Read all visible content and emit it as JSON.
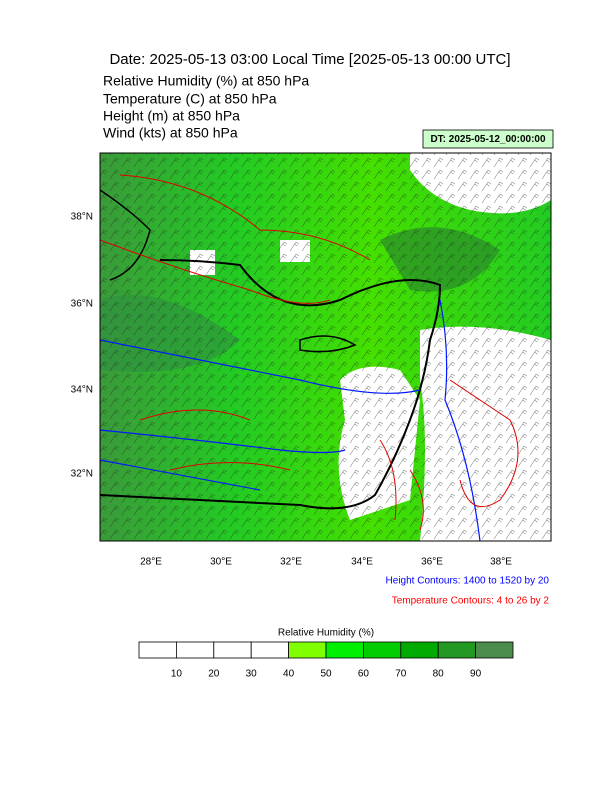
{
  "header": {
    "title": "Date: 2025-05-13  03:00 Local Time [2025-05-13  00:00 UTC]",
    "lines": [
      "Relative Humidity   (%)     at   850 hPa",
      "Temperature   (C)     at   850 hPa",
      "Height   (m)     at   850 hPa",
      "Wind   (kts)     at   850 hPa"
    ],
    "dt": "DT: 2025-05-12_00:00:00"
  },
  "map": {
    "lat_labels": [
      "38°N",
      "36°N",
      "34°N",
      "32°N"
    ],
    "lon_labels": [
      "28°E",
      "30°E",
      "32°E",
      "34°E",
      "36°E",
      "38°E"
    ]
  },
  "notes": [
    "Height Contours: 1400 to 1520 by 20",
    "Temperature Contours: 4 to 26 by 2"
  ],
  "colorbar": {
    "title": "Relative Humidity  (%)",
    "labels": [
      "10",
      "20",
      "30",
      "40",
      "50",
      "60",
      "70",
      "80",
      "90"
    ]
  }
}
